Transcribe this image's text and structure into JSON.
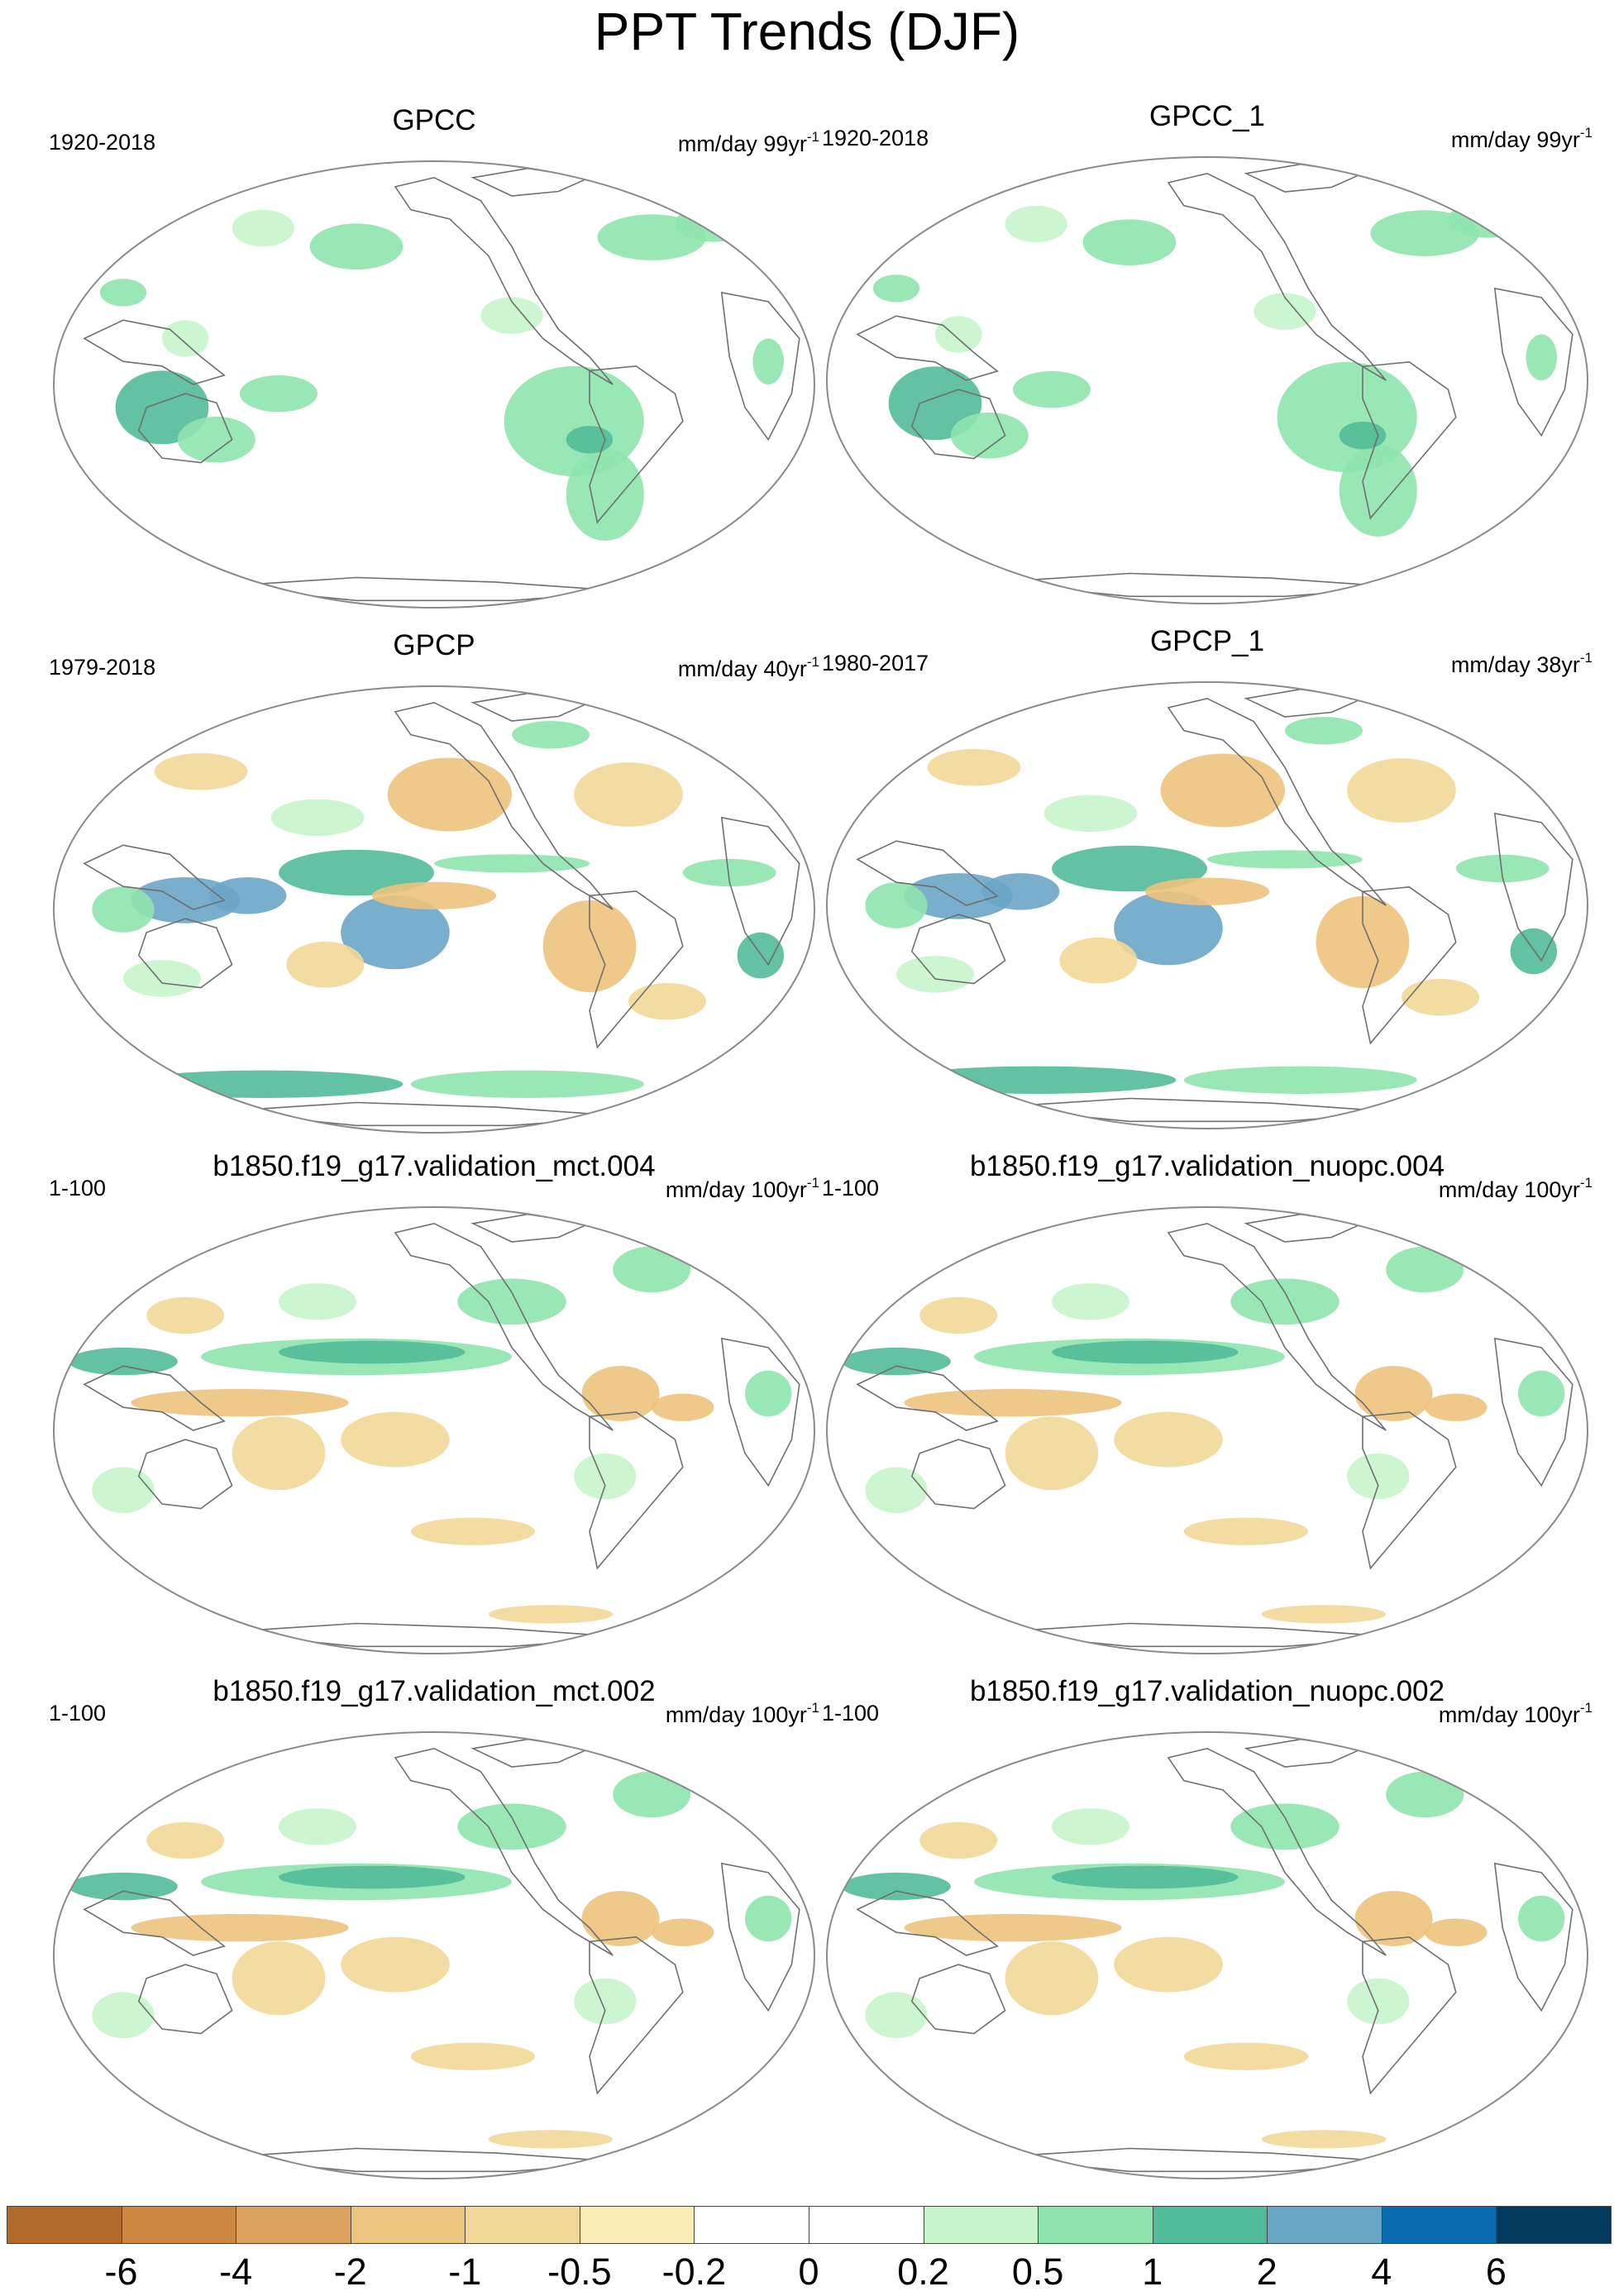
{
  "figure": {
    "title": "PPT Trends (DJF)"
  },
  "panels": [
    {
      "title": "GPCC",
      "period": "1920-2018",
      "units": "mm/day 99yr",
      "units_exp": "-1"
    },
    {
      "title": "GPCC_1",
      "period": "1920-2018",
      "units": "mm/day 99yr",
      "units_exp": "-1"
    },
    {
      "title": "GPCP",
      "period": "1979-2018",
      "units": "mm/day 40yr",
      "units_exp": "-1"
    },
    {
      "title": "GPCP_1",
      "period": "1980-2017",
      "units": "mm/day 38yr",
      "units_exp": "-1"
    },
    {
      "title": "b1850.f19_g17.validation_mct.004",
      "period": "1-100",
      "units": "mm/day 100yr",
      "units_exp": "-1"
    },
    {
      "title": "b1850.f19_g17.validation_nuopc.004",
      "period": "1-100",
      "units": "mm/day 100yr",
      "units_exp": "-1"
    },
    {
      "title": "b1850.f19_g17.validation_mct.002",
      "period": "1-100",
      "units": "mm/day 100yr",
      "units_exp": "-1"
    },
    {
      "title": "b1850.f19_g17.validation_nuopc.002",
      "period": "1-100",
      "units": "mm/day 100yr",
      "units_exp": "-1"
    }
  ],
  "colorbar": {
    "colors": [
      "#b26a2a",
      "#cc8841",
      "#dda15e",
      "#ecc37c",
      "#f2d898",
      "#f8ebb5",
      "#ffffff",
      "#ffffff",
      "#c6f5cb",
      "#8fe4ae",
      "#52bb99",
      "#6aa6c6",
      "#0a6cae",
      "#043a5e"
    ],
    "labels": [
      "-6",
      "-4",
      "-2",
      "-1",
      "-0.5",
      "-0.2",
      "0",
      "0.2",
      "0.5",
      "1",
      "2",
      "4",
      "6"
    ]
  },
  "map_colors": {
    "outline": "#8a8a8a",
    "coast": "#6f6f6f"
  }
}
